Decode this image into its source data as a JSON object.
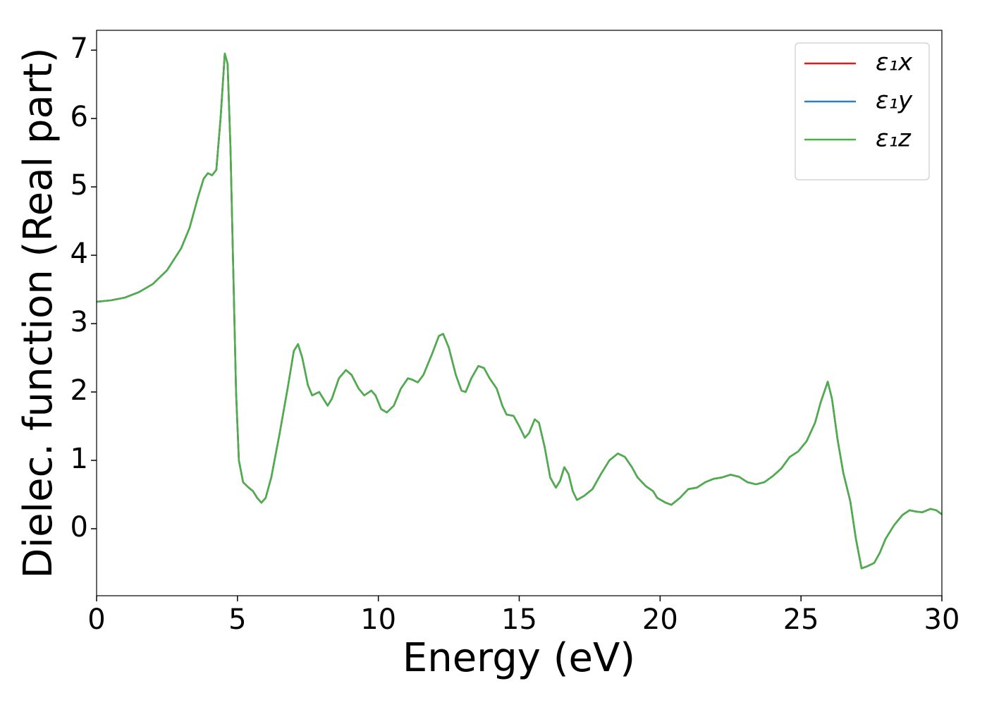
{
  "chart_data": {
    "type": "line",
    "xlabel": "Energy (eV)",
    "ylabel": "Dielec. function (Real part)",
    "x": [
      0,
      0.5,
      1,
      1.5,
      2,
      2.5,
      3,
      3.3,
      3.6,
      3.8,
      3.95,
      4.1,
      4.25,
      4.4,
      4.55,
      4.65,
      4.75,
      4.85,
      4.95,
      5.05,
      5.2,
      5.4,
      5.55,
      5.7,
      5.85,
      6.0,
      6.2,
      6.5,
      6.8,
      7.0,
      7.15,
      7.3,
      7.5,
      7.65,
      7.9,
      8.05,
      8.2,
      8.35,
      8.6,
      8.85,
      9.05,
      9.3,
      9.5,
      9.75,
      9.9,
      10.1,
      10.3,
      10.55,
      10.8,
      11.05,
      11.2,
      11.4,
      11.6,
      11.9,
      12.15,
      12.3,
      12.5,
      12.75,
      12.95,
      13.1,
      13.3,
      13.55,
      13.75,
      13.95,
      14.2,
      14.4,
      14.55,
      14.8,
      15.0,
      15.2,
      15.35,
      15.55,
      15.7,
      15.9,
      16.1,
      16.3,
      16.45,
      16.6,
      16.75,
      16.9,
      17.05,
      17.3,
      17.6,
      17.9,
      18.2,
      18.5,
      18.75,
      19.0,
      19.2,
      19.5,
      19.75,
      19.9,
      20.2,
      20.4,
      20.7,
      21.0,
      21.3,
      21.6,
      21.9,
      22.2,
      22.5,
      22.8,
      23.1,
      23.4,
      23.7,
      24.0,
      24.3,
      24.6,
      24.9,
      25.2,
      25.5,
      25.7,
      25.95,
      26.1,
      26.3,
      26.5,
      26.75,
      26.95,
      27.15,
      27.35,
      27.6,
      27.8,
      28.0,
      28.3,
      28.6,
      28.85,
      29.1,
      29.3,
      29.6,
      29.8,
      30.0
    ],
    "series": [
      {
        "name": "ε₁x",
        "color": "#e41a1c",
        "values": [
          3.32,
          3.34,
          3.38,
          3.46,
          3.58,
          3.78,
          4.1,
          4.4,
          4.85,
          5.12,
          5.2,
          5.17,
          5.25,
          6.0,
          6.95,
          6.8,
          5.6,
          3.8,
          2.0,
          1.0,
          0.68,
          0.6,
          0.55,
          0.45,
          0.38,
          0.45,
          0.75,
          1.4,
          2.1,
          2.6,
          2.7,
          2.5,
          2.1,
          1.95,
          2.0,
          1.9,
          1.8,
          1.9,
          2.2,
          2.32,
          2.25,
          2.05,
          1.95,
          2.02,
          1.95,
          1.75,
          1.7,
          1.8,
          2.05,
          2.2,
          2.18,
          2.14,
          2.25,
          2.55,
          2.82,
          2.85,
          2.65,
          2.25,
          2.02,
          2.0,
          2.2,
          2.38,
          2.35,
          2.2,
          2.05,
          1.8,
          1.67,
          1.65,
          1.5,
          1.33,
          1.4,
          1.6,
          1.55,
          1.2,
          0.75,
          0.6,
          0.7,
          0.9,
          0.8,
          0.55,
          0.42,
          0.48,
          0.58,
          0.8,
          1.0,
          1.1,
          1.05,
          0.9,
          0.75,
          0.62,
          0.55,
          0.45,
          0.38,
          0.35,
          0.45,
          0.58,
          0.6,
          0.68,
          0.73,
          0.75,
          0.79,
          0.76,
          0.68,
          0.65,
          0.68,
          0.77,
          0.88,
          1.05,
          1.13,
          1.28,
          1.55,
          1.85,
          2.15,
          1.9,
          1.3,
          0.82,
          0.4,
          -0.15,
          -0.58,
          -0.55,
          -0.5,
          -0.35,
          -0.15,
          0.05,
          0.2,
          0.27,
          0.25,
          0.24,
          0.29,
          0.27,
          0.21
        ]
      },
      {
        "name": "ε₁y",
        "color": "#377eb8",
        "values": [
          3.32,
          3.34,
          3.38,
          3.46,
          3.58,
          3.78,
          4.1,
          4.4,
          4.85,
          5.12,
          5.2,
          5.17,
          5.25,
          6.0,
          6.95,
          6.8,
          5.6,
          3.8,
          2.0,
          1.0,
          0.68,
          0.6,
          0.55,
          0.45,
          0.38,
          0.45,
          0.75,
          1.4,
          2.1,
          2.6,
          2.7,
          2.5,
          2.1,
          1.95,
          2.0,
          1.9,
          1.8,
          1.9,
          2.2,
          2.32,
          2.25,
          2.05,
          1.95,
          2.02,
          1.95,
          1.75,
          1.7,
          1.8,
          2.05,
          2.2,
          2.18,
          2.14,
          2.25,
          2.55,
          2.82,
          2.85,
          2.65,
          2.25,
          2.02,
          2.0,
          2.2,
          2.38,
          2.35,
          2.2,
          2.05,
          1.8,
          1.67,
          1.65,
          1.5,
          1.33,
          1.4,
          1.6,
          1.55,
          1.2,
          0.75,
          0.6,
          0.7,
          0.9,
          0.8,
          0.55,
          0.42,
          0.48,
          0.58,
          0.8,
          1.0,
          1.1,
          1.05,
          0.9,
          0.75,
          0.62,
          0.55,
          0.45,
          0.38,
          0.35,
          0.45,
          0.58,
          0.6,
          0.68,
          0.73,
          0.75,
          0.79,
          0.76,
          0.68,
          0.65,
          0.68,
          0.77,
          0.88,
          1.05,
          1.13,
          1.28,
          1.55,
          1.85,
          2.15,
          1.9,
          1.3,
          0.82,
          0.4,
          -0.15,
          -0.58,
          -0.55,
          -0.5,
          -0.35,
          -0.15,
          0.05,
          0.2,
          0.27,
          0.25,
          0.24,
          0.29,
          0.27,
          0.21
        ]
      },
      {
        "name": "ε₁z",
        "color": "#4daf4a",
        "values": [
          3.32,
          3.34,
          3.38,
          3.46,
          3.58,
          3.78,
          4.1,
          4.4,
          4.85,
          5.12,
          5.2,
          5.17,
          5.25,
          6.0,
          6.95,
          6.8,
          5.6,
          3.8,
          2.0,
          1.0,
          0.68,
          0.6,
          0.55,
          0.45,
          0.38,
          0.45,
          0.75,
          1.4,
          2.1,
          2.6,
          2.7,
          2.5,
          2.1,
          1.95,
          2.0,
          1.9,
          1.8,
          1.9,
          2.2,
          2.32,
          2.25,
          2.05,
          1.95,
          2.02,
          1.95,
          1.75,
          1.7,
          1.8,
          2.05,
          2.2,
          2.18,
          2.14,
          2.25,
          2.55,
          2.82,
          2.85,
          2.65,
          2.25,
          2.02,
          2.0,
          2.2,
          2.38,
          2.35,
          2.2,
          2.05,
          1.8,
          1.67,
          1.65,
          1.5,
          1.33,
          1.4,
          1.6,
          1.55,
          1.2,
          0.75,
          0.6,
          0.7,
          0.9,
          0.8,
          0.55,
          0.42,
          0.48,
          0.58,
          0.8,
          1.0,
          1.1,
          1.05,
          0.9,
          0.75,
          0.62,
          0.55,
          0.45,
          0.38,
          0.35,
          0.45,
          0.58,
          0.6,
          0.68,
          0.73,
          0.75,
          0.79,
          0.76,
          0.68,
          0.65,
          0.68,
          0.77,
          0.88,
          1.05,
          1.13,
          1.28,
          1.55,
          1.85,
          2.15,
          1.9,
          1.3,
          0.82,
          0.4,
          -0.15,
          -0.58,
          -0.55,
          -0.5,
          -0.35,
          -0.15,
          0.05,
          0.2,
          0.27,
          0.25,
          0.24,
          0.29,
          0.27,
          0.21
        ]
      }
    ],
    "xlim": [
      0,
      30
    ],
    "xticks": [
      0,
      5,
      10,
      15,
      20,
      25,
      30
    ],
    "ylim": [
      -0.98,
      7.29
    ],
    "yticks": [
      0,
      1,
      2,
      3,
      4,
      5,
      6,
      7
    ],
    "grid": false,
    "legend": "upper right"
  }
}
